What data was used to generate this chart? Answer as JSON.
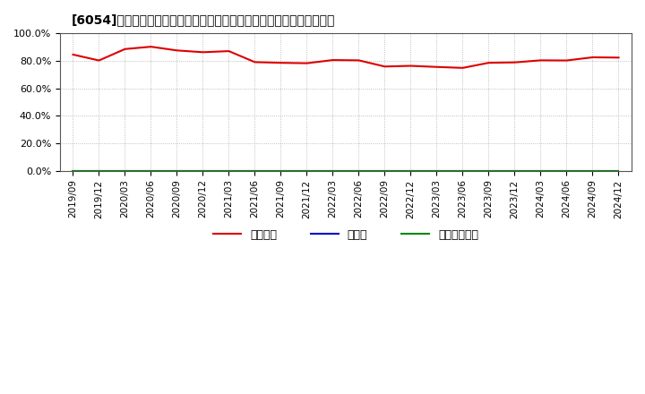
{
  "title": "[6054]　自己資本、のれん、繰延税金資産の総資産に対する比率の推移",
  "background_color": "#ffffff",
  "grid_color": "#999999",
  "x_labels": [
    "2019/09",
    "2019/12",
    "2020/03",
    "2020/06",
    "2020/09",
    "2020/12",
    "2021/03",
    "2021/06",
    "2021/09",
    "2021/12",
    "2022/03",
    "2022/06",
    "2022/09",
    "2022/12",
    "2023/03",
    "2023/06",
    "2023/09",
    "2023/12",
    "2024/03",
    "2024/06",
    "2024/09",
    "2024/12"
  ],
  "jikoshihon": [
    84.5,
    80.2,
    88.5,
    90.2,
    87.5,
    86.2,
    87.0,
    79.0,
    78.5,
    78.2,
    80.5,
    80.3,
    75.8,
    76.3,
    75.5,
    74.8,
    78.5,
    78.8,
    80.3,
    80.2,
    82.5,
    82.3
  ],
  "noren": [
    0,
    0,
    0,
    0,
    0,
    0,
    0,
    0,
    0,
    0,
    0,
    0,
    0,
    0,
    0,
    0,
    0,
    0,
    0,
    0,
    0,
    0
  ],
  "kurinobe": [
    0,
    0,
    0,
    0,
    0,
    0,
    0,
    0,
    0,
    0,
    0,
    0,
    0,
    0,
    0,
    0,
    0,
    0,
    0,
    0,
    0,
    0
  ],
  "jikoshihon_color": "#dd0000",
  "noren_color": "#0000cc",
  "kurinobe_color": "#008800",
  "legend_label_jikoshihon": "自己資本",
  "legend_label_noren": "のれん",
  "legend_label_kurinobe": "繰延税金資産",
  "ylim": [
    0,
    100
  ],
  "yticks": [
    0,
    20,
    40,
    60,
    80,
    100
  ],
  "ytick_labels": [
    "0.0%",
    "20.0%",
    "40.0%",
    "60.0%",
    "80.0%",
    "100.0%"
  ]
}
